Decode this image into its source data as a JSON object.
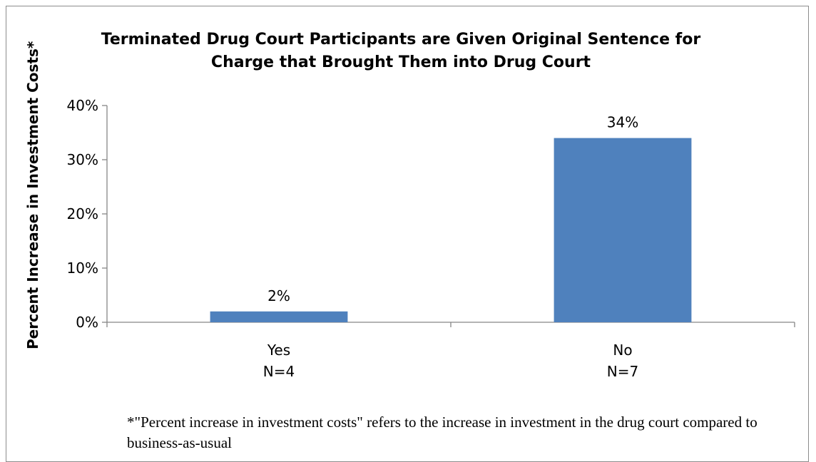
{
  "chart_data": {
    "type": "bar",
    "title": "Terminated Drug Court Participants are Given Original Sentence for Charge that Brought Them into Drug Court",
    "ylabel": "Percent Increase in Investment Costs*",
    "categories": [
      "Yes",
      "No"
    ],
    "category_sublabels": [
      "N=4",
      "N=7"
    ],
    "values": [
      2,
      34
    ],
    "data_labels": [
      "2%",
      "34%"
    ],
    "ylim": [
      0,
      40
    ],
    "yticks": [
      0,
      10,
      20,
      30,
      40
    ],
    "ytick_labels": [
      "0%",
      "10%",
      "20%",
      "30%",
      "40%"
    ],
    "bar_color": "#4f81bd",
    "grid": false,
    "legend": "none"
  },
  "footnote": "*\"Percent increase in investment costs\" refers to the increase in investment in the drug court compared to business-as-usual"
}
